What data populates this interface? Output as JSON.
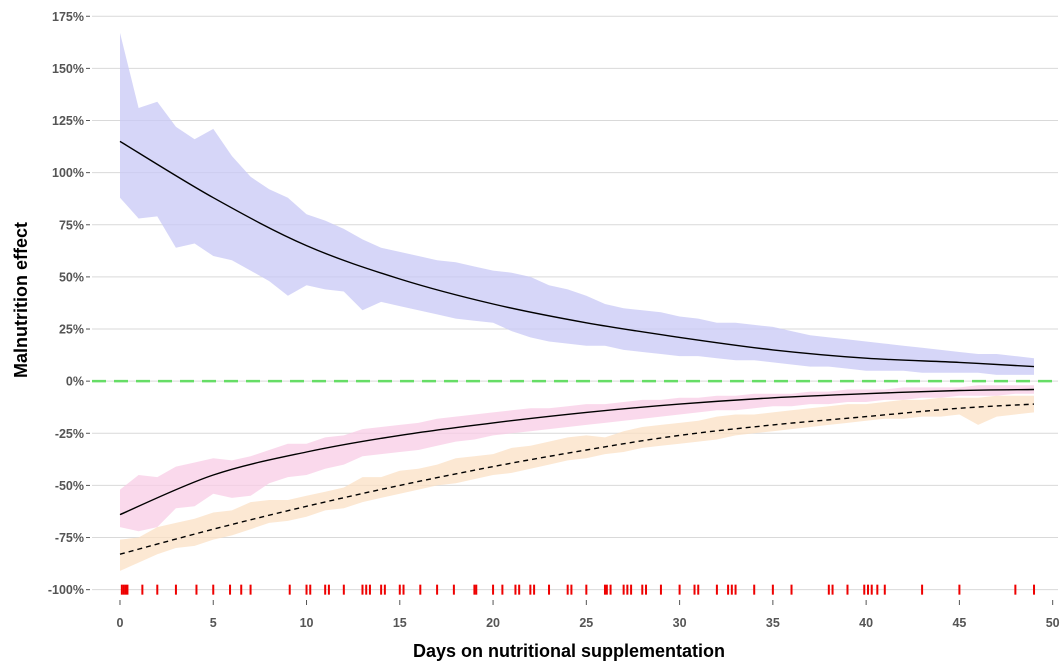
{
  "chart_data": {
    "type": "line",
    "title": "",
    "xlabel": "Days on nutritional supplementation",
    "ylabel": "Malnutrition effect",
    "xlim": [
      -1.5,
      50.5
    ],
    "ylim": [
      -104,
      178
    ],
    "x_ticks": [
      0,
      5,
      10,
      15,
      20,
      25,
      30,
      35,
      40,
      45,
      50
    ],
    "x_tick_labels": [
      "0",
      "5",
      "10",
      "15",
      "20",
      "25",
      "30",
      "35",
      "40",
      "45",
      "50"
    ],
    "y_ticks": [
      -100,
      -75,
      -50,
      -25,
      0,
      25,
      50,
      75,
      100,
      125,
      150,
      175
    ],
    "y_tick_labels": [
      "-100%",
      "-75%",
      "-50%",
      "-25%",
      "0%",
      "25%",
      "50%",
      "75%",
      "100%",
      "125%",
      "150%",
      "175%"
    ],
    "grid": "horizontal",
    "legend": "none",
    "reference_line": {
      "y": 0,
      "color": "#66dd66",
      "style": "dashed"
    },
    "series": [
      {
        "color": "#000000",
        "band_color": "#c8c8f5",
        "line_style": "solid",
        "curve": {
          "x": [
            0,
            5,
            10,
            15,
            20,
            25,
            30,
            35,
            40,
            45,
            49
          ],
          "y": [
            115,
            88,
            65,
            49,
            37,
            28,
            21,
            15,
            11,
            9,
            7
          ]
        },
        "band": {
          "x": [
            0,
            1,
            2,
            3,
            4,
            5,
            6,
            7,
            8,
            9,
            10,
            11,
            12,
            13,
            14,
            15,
            16,
            17,
            18,
            19,
            20,
            21,
            22,
            23,
            24,
            25,
            26,
            27,
            28,
            29,
            30,
            31,
            32,
            33,
            34,
            35,
            36,
            37,
            38,
            39,
            40,
            41,
            42,
            43,
            44,
            45,
            46,
            47,
            48,
            49
          ],
          "upper": [
            167,
            131,
            134,
            122,
            116,
            121,
            108,
            98,
            92,
            88,
            80,
            77,
            73,
            68,
            64,
            62,
            60,
            58,
            57,
            55,
            53,
            52,
            50,
            46,
            44,
            41,
            37,
            35,
            34,
            33,
            31,
            30,
            28,
            28,
            27,
            26,
            24,
            22,
            21,
            20,
            19,
            18,
            17,
            16,
            15,
            14,
            13,
            13,
            12,
            11
          ],
          "lower": [
            88,
            78,
            79,
            64,
            66,
            60,
            58,
            53,
            48,
            41,
            46,
            44,
            43,
            34,
            38,
            36,
            34,
            32,
            30,
            29,
            28,
            24,
            21,
            19,
            18,
            17,
            17,
            15,
            14,
            13,
            12,
            12,
            11,
            10,
            10,
            9,
            8,
            7,
            7,
            6,
            5,
            5,
            5,
            4,
            4,
            4,
            4,
            3,
            3,
            3
          ]
        }
      },
      {
        "color": "#000000",
        "band_color": "#f8cce6",
        "line_style": "solid",
        "curve": {
          "x": [
            0,
            5,
            10,
            15,
            20,
            25,
            30,
            35,
            40,
            45,
            49
          ],
          "y": [
            -64,
            -45,
            -34,
            -26,
            -20,
            -15,
            -11,
            -8,
            -6,
            -4.5,
            -4
          ]
        },
        "band": {
          "x": [
            0,
            1,
            2,
            3,
            4,
            5,
            6,
            7,
            8,
            9,
            10,
            11,
            12,
            13,
            14,
            15,
            16,
            17,
            18,
            19,
            20,
            21,
            22,
            23,
            24,
            25,
            26,
            27,
            28,
            29,
            30,
            31,
            32,
            33,
            34,
            35,
            36,
            37,
            38,
            39,
            40,
            41,
            42,
            43,
            44,
            45,
            46,
            47,
            48,
            49
          ],
          "upper": [
            -52,
            -45,
            -46,
            -41,
            -39,
            -37,
            -38,
            -36,
            -33,
            -30,
            -30,
            -27,
            -26,
            -23,
            -22,
            -21,
            -20,
            -18,
            -17,
            -16,
            -15,
            -14,
            -13,
            -13,
            -12,
            -11,
            -11,
            -10,
            -9,
            -9,
            -8,
            -8,
            -7,
            -7,
            -6,
            -6,
            -6,
            -5,
            -5,
            -4,
            -4,
            -4,
            -3,
            -3,
            -3,
            -3,
            -2,
            -2,
            -2,
            -2
          ],
          "lower": [
            -70,
            -72,
            -70,
            -61,
            -60,
            -54,
            -56,
            -55,
            -49,
            -46,
            -45,
            -42,
            -40,
            -36,
            -35,
            -34,
            -33,
            -31,
            -29,
            -28,
            -26,
            -25,
            -24,
            -23,
            -22,
            -21,
            -20,
            -19,
            -18,
            -17,
            -16,
            -15,
            -14,
            -14,
            -13,
            -12,
            -12,
            -11,
            -11,
            -10,
            -10,
            -9,
            -9,
            -8,
            -8,
            -7,
            -7,
            -7,
            -6,
            -6
          ]
        }
      },
      {
        "color": "#000000",
        "band_color": "#fbe0c4",
        "line_style": "dashed",
        "curve": {
          "x": [
            0,
            5,
            10,
            15,
            20,
            25,
            30,
            35,
            40,
            45,
            49
          ],
          "y": [
            -83,
            -71,
            -60,
            -50,
            -41,
            -33,
            -26,
            -21,
            -17,
            -13,
            -11
          ]
        },
        "band": {
          "x": [
            0,
            1,
            2,
            3,
            4,
            5,
            6,
            7,
            8,
            9,
            10,
            11,
            12,
            13,
            14,
            15,
            16,
            17,
            18,
            19,
            20,
            21,
            22,
            23,
            24,
            25,
            26,
            27,
            28,
            29,
            30,
            31,
            32,
            33,
            34,
            35,
            36,
            37,
            38,
            39,
            40,
            41,
            42,
            43,
            44,
            45,
            46,
            47,
            48,
            49
          ],
          "upper": [
            -76,
            -75,
            -70,
            -68,
            -66,
            -63,
            -62,
            -58,
            -57,
            -57,
            -55,
            -53,
            -51,
            -46,
            -46,
            -43,
            -42,
            -40,
            -37,
            -36,
            -35,
            -32,
            -31,
            -29,
            -27,
            -26,
            -27,
            -24,
            -22,
            -21,
            -20,
            -19,
            -17,
            -16,
            -16,
            -15,
            -14,
            -13,
            -12,
            -11,
            -11,
            -10,
            -9,
            -9,
            -8,
            -8,
            -8,
            -7,
            -7,
            -7
          ],
          "lower": [
            -91,
            -87,
            -83,
            -80,
            -79,
            -76,
            -74,
            -71,
            -68,
            -67,
            -65,
            -62,
            -61,
            -58,
            -56,
            -54,
            -52,
            -50,
            -49,
            -47,
            -45,
            -44,
            -42,
            -40,
            -38,
            -37,
            -35,
            -34,
            -32,
            -31,
            -30,
            -29,
            -28,
            -26,
            -25,
            -24,
            -23,
            -22,
            -21,
            -20,
            -19,
            -18,
            -18,
            -17,
            -17,
            -16,
            -21,
            -17,
            -16,
            -15
          ]
        }
      }
    ],
    "rug": {
      "y": -100,
      "color": "#ee0000",
      "x": [
        0.1,
        0.2,
        0.3,
        0.4,
        1.2,
        2.0,
        3.0,
        4.1,
        5.0,
        5.9,
        6.5,
        7.0,
        9.1,
        10.0,
        10.2,
        11.0,
        11.2,
        12.0,
        13.0,
        13.2,
        13.4,
        14.0,
        14.2,
        15.0,
        15.2,
        16.1,
        17.0,
        17.9,
        19.0,
        19.1,
        20.0,
        20.5,
        21.2,
        21.4,
        22.0,
        22.2,
        23.0,
        24.0,
        24.2,
        25.0,
        26.0,
        26.1,
        26.3,
        27.0,
        27.2,
        27.4,
        28.0,
        28.2,
        29.0,
        30.0,
        30.8,
        31.0,
        32.0,
        32.6,
        32.8,
        33.0,
        34.0,
        35.0,
        36.0,
        38.0,
        38.2,
        39.0,
        39.9,
        40.1,
        40.3,
        40.6,
        41.0,
        43.0,
        45.0,
        48.0,
        49.0
      ]
    }
  }
}
